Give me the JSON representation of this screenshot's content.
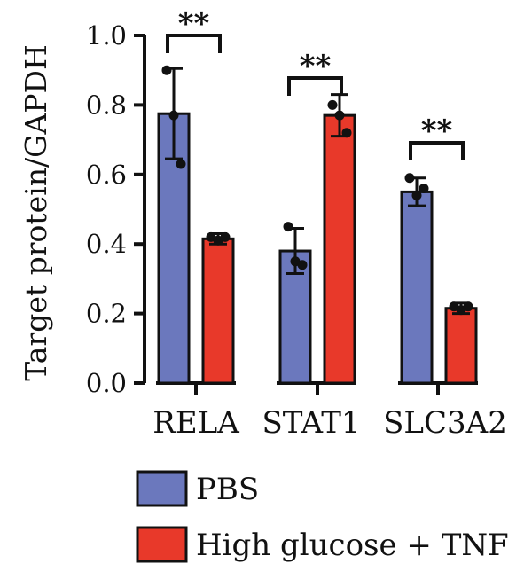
{
  "chart_data": {
    "type": "bar",
    "title": "",
    "xlabel": "",
    "ylabel": "Target protein/GAPDH",
    "ylim": [
      0,
      1.0
    ],
    "yticks": [
      "0.0",
      "0.2",
      "0.4",
      "0.6",
      "0.8",
      "1.0"
    ],
    "categories": [
      "RELA",
      "STAT1",
      "SLC3A2"
    ],
    "series": [
      {
        "name": "PBS",
        "color": "#6b78bd",
        "values": [
          0.775,
          0.38,
          0.55
        ],
        "errors": [
          0.13,
          0.065,
          0.04
        ],
        "points": [
          [
            0.9,
            0.77,
            0.63
          ],
          [
            0.45,
            0.35,
            0.34
          ],
          [
            0.59,
            0.54,
            0.56
          ]
        ]
      },
      {
        "name": "High glucose + TNF",
        "color": "#e8392a",
        "values": [
          0.415,
          0.77,
          0.215
        ],
        "errors": [
          0.015,
          0.06,
          0.015
        ],
        "points": [
          [
            0.42,
            0.41,
            0.42
          ],
          [
            0.8,
            0.77,
            0.72
          ],
          [
            0.22,
            0.21,
            0.22
          ]
        ]
      }
    ],
    "significance": [
      "**",
      "**",
      "**"
    ],
    "legend_position": "bottom-left",
    "grid": false
  }
}
